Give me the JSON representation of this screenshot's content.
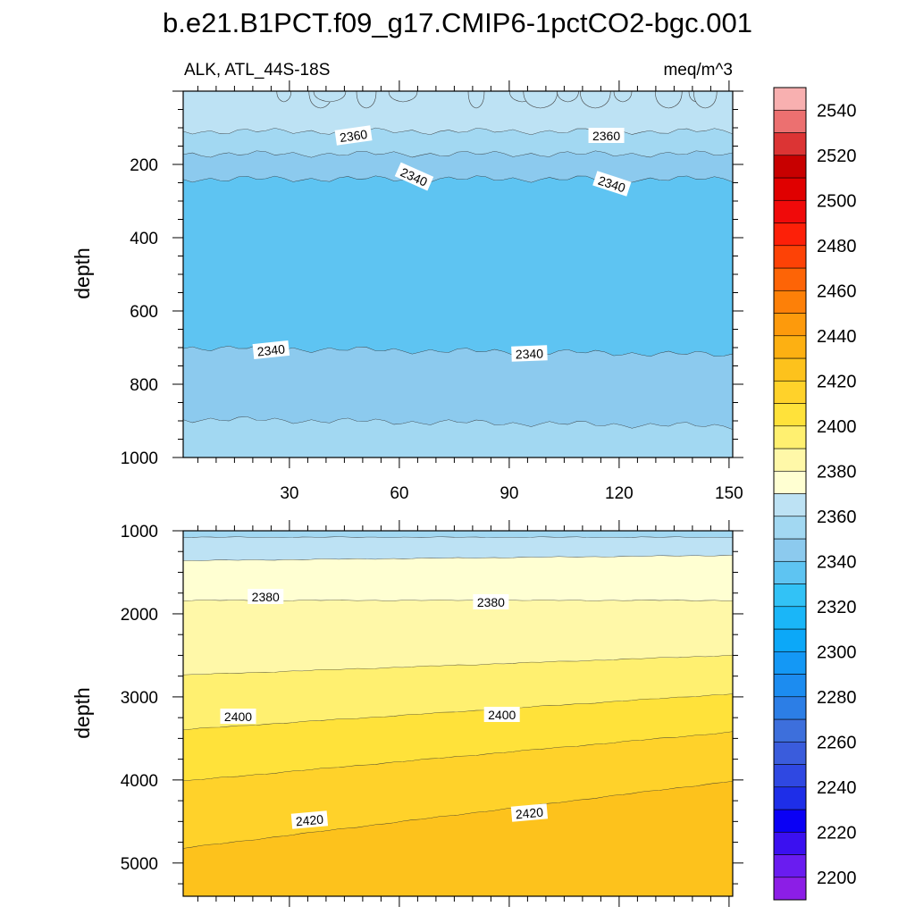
{
  "chart_data": {
    "type": "heatmap",
    "title": "b.e21.B1PCT.f09_g17.CMIP6-1pctCO2-bgc.001",
    "subtitle_left": "ALK, ATL_44S-18S",
    "subtitle_right": "meq/m^3",
    "xlabel": "",
    "ylabel": "depth",
    "x_ticks": [
      "30",
      "60",
      "90",
      "120",
      "150"
    ],
    "x_range": [
      1,
      151
    ],
    "colorbar": {
      "levels": [
        2200,
        2210,
        2220,
        2230,
        2240,
        2250,
        2260,
        2270,
        2280,
        2290,
        2300,
        2310,
        2320,
        2330,
        2340,
        2350,
        2360,
        2370,
        2380,
        2390,
        2400,
        2410,
        2420,
        2430,
        2440,
        2450,
        2460,
        2470,
        2480,
        2490,
        2500,
        2510,
        2520,
        2530,
        2540,
        2550
      ],
      "labels": [
        "2200",
        "2220",
        "2240",
        "2260",
        "2280",
        "2300",
        "2320",
        "2340",
        "2360",
        "2380",
        "2400",
        "2420",
        "2440",
        "2460",
        "2480",
        "2500",
        "2520",
        "2540"
      ],
      "colors": [
        "#8c1ee6",
        "#6a1cf0",
        "#3b10f0",
        "#0a00f5",
        "#1e2ee8",
        "#2f48e2",
        "#3a5cdc",
        "#3d6fdc",
        "#2c7ee6",
        "#1c8cf0",
        "#1498f5",
        "#0ca8f8",
        "#1ab6f8",
        "#32c2f6",
        "#5ec4f2",
        "#8ccaee",
        "#a2d8f2",
        "#bde2f4",
        "#ffffd2",
        "#fff8a8",
        "#fff070",
        "#ffe23a",
        "#ffd22a",
        "#fdc21c",
        "#fdb012",
        "#fd9a0c",
        "#fd8008",
        "#fd6406",
        "#fd4206",
        "#fd2008",
        "#f00a0a",
        "#e00000",
        "#c80000",
        "#dc3434",
        "#ec7070",
        "#f8b0b0"
      ]
    },
    "panels": [
      {
        "name": "upper",
        "y_range": [
          0,
          1000
        ],
        "y_ticks": [
          "200",
          "400",
          "600",
          "800",
          "1000"
        ],
        "bands": [
          {
            "level_below": 2360,
            "color": "#bde2f4",
            "boundary_depth": 110
          },
          {
            "level_below": 2350,
            "color": "#a2d8f2",
            "boundary_depth": 172
          },
          {
            "level_below": 2340,
            "color": "#8ccaee",
            "boundary_depth": 240
          },
          {
            "level_below": 2330,
            "color": "#5ec4f2",
            "boundary_depth": 710
          },
          {
            "level_below": 2340,
            "color": "#8ccaee",
            "boundary_depth": 905
          },
          {
            "level_below": 2350,
            "color": "#a2d8f2",
            "boundary_depth": 1000
          }
        ],
        "surface_patches_level": 2370,
        "line_labels": [
          "2360",
          "2360",
          "2340",
          "2340",
          "2340",
          "2340"
        ]
      },
      {
        "name": "lower",
        "y_range": [
          1000,
          5400
        ],
        "y_ticks": [
          "1000",
          "2000",
          "3000",
          "4000",
          "5000"
        ],
        "bands": [
          {
            "level_below": 2360,
            "color": "#a2d8f2",
            "boundary_depth": 1080
          },
          {
            "level_below": 2370,
            "color": "#bde2f4",
            "boundary_depth": 1330
          },
          {
            "level_below": 2380,
            "color": "#ffffd2",
            "boundary_depth": 1840
          },
          {
            "level_below": 2390,
            "color": "#fff8a8",
            "boundary_depth": 2620
          },
          {
            "level_below": 2400,
            "color": "#fff070",
            "boundary_depth": 3180
          },
          {
            "level_below": 2410,
            "color": "#ffe23a",
            "boundary_depth": 3720
          },
          {
            "level_below": 2420,
            "color": "#ffd22a",
            "boundary_depth": 4420
          },
          {
            "level_below": 2430,
            "color": "#fdc21c",
            "boundary_depth": 5400
          }
        ],
        "line_labels": [
          "2380",
          "2380",
          "2400",
          "2400",
          "2420",
          "2420"
        ]
      }
    ]
  }
}
